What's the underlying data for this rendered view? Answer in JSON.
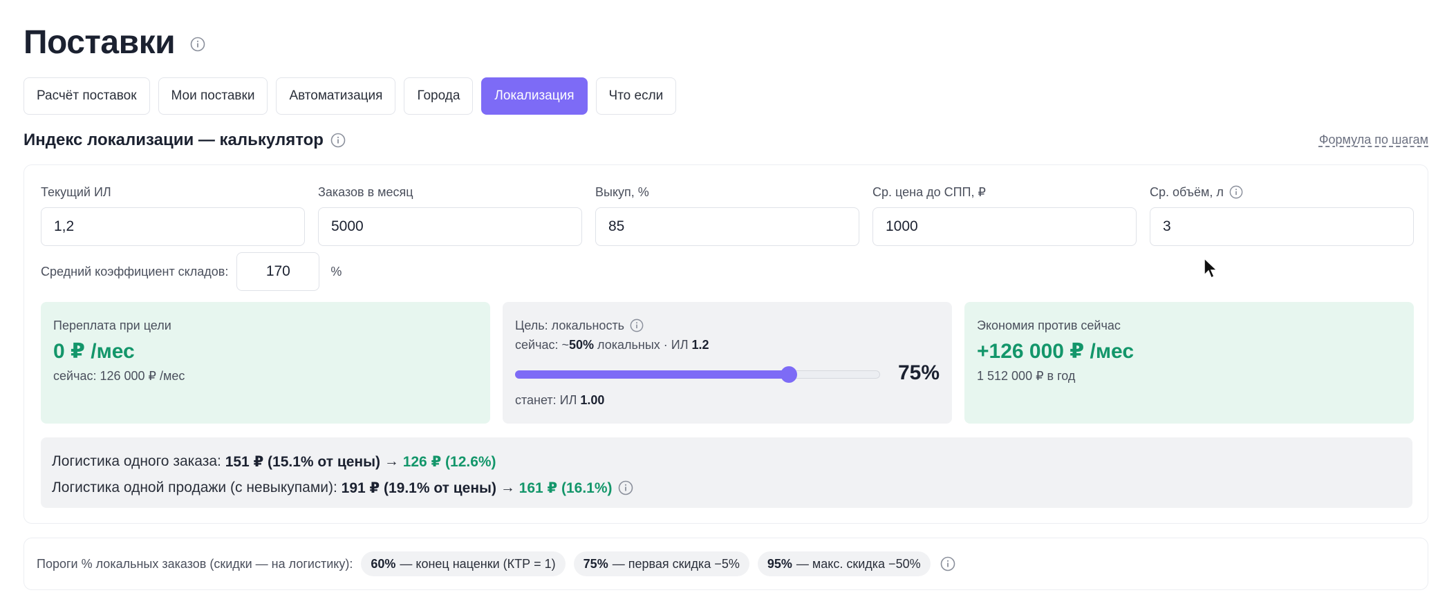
{
  "page": {
    "title": "Поставки"
  },
  "tabs": [
    {
      "label": "Расчёт поставок",
      "active": false
    },
    {
      "label": "Мои поставки",
      "active": false
    },
    {
      "label": "Автоматизация",
      "active": false
    },
    {
      "label": "Города",
      "active": false
    },
    {
      "label": "Локализация",
      "active": true
    },
    {
      "label": "Что если",
      "active": false
    }
  ],
  "section": {
    "title": "Индекс локализации — калькулятор",
    "formula_link": "Формула по шагам"
  },
  "fields": [
    {
      "label": "Текущий ИЛ",
      "value": "1,2"
    },
    {
      "label": "Заказов в месяц",
      "value": "5000"
    },
    {
      "label": "Выкуп, %",
      "value": "85"
    },
    {
      "label": "Ср. цена до СПП, ₽",
      "value": "1000"
    },
    {
      "label": "Ср. объём, л",
      "value": "3",
      "info": true
    }
  ],
  "coef": {
    "label": "Средний коэффициент складов:",
    "value": "170",
    "unit": "%"
  },
  "overpay": {
    "label": "Переплата при цели",
    "value": "0 ₽ /мес",
    "sub": "сейчас: 126 000 ₽ /мес"
  },
  "target": {
    "label": "Цель: локальность",
    "now_prefix": "сейчас: ~",
    "now_pct": "50%",
    "now_mid": " локальных · ИЛ ",
    "now_il": "1.2",
    "slider_fraction": 0.75,
    "slider_value": "75%",
    "will_prefix": "станет: ИЛ ",
    "will_il": "1.00"
  },
  "savings": {
    "label": "Экономия против сейчас",
    "value": "+126 000 ₽ /мес",
    "sub": "1 512 000 ₽ в год"
  },
  "logistics": {
    "order": {
      "prefix": "Логистика одного заказа: ",
      "current": "151 ₽ (15.1% от цены)",
      "arrow": " → ",
      "target": "126 ₽ (12.6%)"
    },
    "sale": {
      "prefix": "Логистика одной продажи (с невыкупами): ",
      "current": "191 ₽ (19.1% от цены)",
      "arrow": " → ",
      "target": "161 ₽ (16.1%)"
    }
  },
  "thresholds": {
    "label": "Пороги % локальных заказов (скидки — на логистику):",
    "chips": [
      {
        "pct": "60%",
        "text": "— конец наценки (КТР = 1)"
      },
      {
        "pct": "75%",
        "text": "— первая скидка −5%"
      },
      {
        "pct": "95%",
        "text": "— макс. скидка −50%"
      }
    ]
  },
  "colors": {
    "accent": "#7d6bf6",
    "positive": "#13966a",
    "green_panel": "#e7f6ef",
    "gray_panel": "#f1f2f4"
  },
  "icons": {
    "info": "info-circle-icon",
    "cursor": "mouse-pointer-icon"
  }
}
